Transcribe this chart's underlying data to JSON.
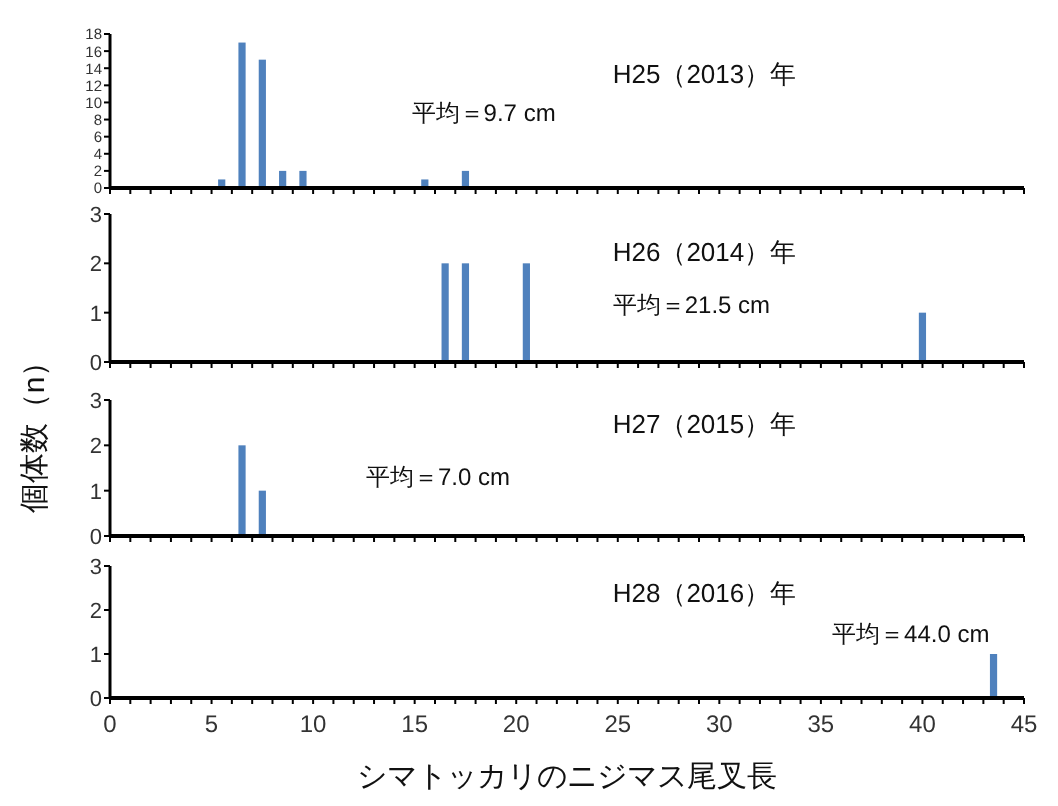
{
  "chart_data": [
    {
      "type": "bar",
      "title": "H25（2013）年",
      "annotations": [
        "平均＝9.7 cm"
      ],
      "xlim": [
        0,
        45
      ],
      "ylim": [
        0,
        18
      ],
      "yticks": [
        0,
        2,
        4,
        6,
        8,
        10,
        12,
        14,
        16,
        18
      ],
      "xticks": [
        {
          "value": 0,
          "label": null
        },
        {
          "value": 1,
          "label": null
        },
        {
          "value": 2,
          "label": null
        },
        {
          "value": 3,
          "label": null
        },
        {
          "value": 4,
          "label": null
        },
        {
          "value": 5,
          "label": null
        },
        {
          "value": 6,
          "label": null
        },
        {
          "value": 7,
          "label": null
        },
        {
          "value": 8,
          "label": null
        },
        {
          "value": 9,
          "label": null
        },
        {
          "value": 10,
          "label": null
        },
        {
          "value": 11,
          "label": null
        },
        {
          "value": 12,
          "label": null
        },
        {
          "value": 13,
          "label": null
        },
        {
          "value": 14,
          "label": null
        },
        {
          "value": 15,
          "label": null
        },
        {
          "value": 16,
          "label": null
        },
        {
          "value": 17,
          "label": null
        },
        {
          "value": 18,
          "label": null
        },
        {
          "value": 19,
          "label": null
        },
        {
          "value": 20,
          "label": null
        },
        {
          "value": 21,
          "label": null
        },
        {
          "value": 22,
          "label": null
        },
        {
          "value": 23,
          "label": null
        },
        {
          "value": 24,
          "label": null
        },
        {
          "value": 25,
          "label": null
        },
        {
          "value": 26,
          "label": null
        },
        {
          "value": 27,
          "label": null
        },
        {
          "value": 28,
          "label": null
        },
        {
          "value": 29,
          "label": null
        },
        {
          "value": 30,
          "label": null
        },
        {
          "value": 31,
          "label": null
        },
        {
          "value": 32,
          "label": null
        },
        {
          "value": 33,
          "label": null
        },
        {
          "value": 34,
          "label": null
        },
        {
          "value": 35,
          "label": null
        },
        {
          "value": 36,
          "label": null
        },
        {
          "value": 37,
          "label": null
        },
        {
          "value": 38,
          "label": null
        },
        {
          "value": 39,
          "label": null
        },
        {
          "value": 40,
          "label": null
        },
        {
          "value": 41,
          "label": null
        },
        {
          "value": 42,
          "label": null
        },
        {
          "value": 43,
          "label": null
        },
        {
          "value": 44,
          "label": null
        },
        {
          "value": 45,
          "label": null
        }
      ],
      "tick_labels": "y",
      "series": [
        {
          "color": "#4f81bd",
          "x": [
            5.5,
            6.5,
            7.5,
            8.5,
            9.5,
            15.5,
            17.5
          ],
          "values": [
            1,
            17,
            15,
            2,
            2,
            1,
            2
          ]
        }
      ]
    },
    {
      "type": "bar",
      "title": "H26（2014）年",
      "annotations": [
        "平均＝21.5 cm"
      ],
      "ylabel": "個体数（n）",
      "xlim": [
        0,
        45
      ],
      "ylim": [
        0,
        3
      ],
      "yticks": [
        0,
        1,
        2,
        3
      ],
      "xticks": [
        {
          "value": 0,
          "label": null
        },
        {
          "value": 1,
          "label": null
        },
        {
          "value": 2,
          "label": null
        },
        {
          "value": 3,
          "label": null
        },
        {
          "value": 4,
          "label": null
        },
        {
          "value": 5,
          "label": null
        },
        {
          "value": 6,
          "label": null
        },
        {
          "value": 7,
          "label": null
        },
        {
          "value": 8,
          "label": null
        },
        {
          "value": 9,
          "label": null
        },
        {
          "value": 10,
          "label": null
        },
        {
          "value": 11,
          "label": null
        },
        {
          "value": 12,
          "label": null
        },
        {
          "value": 13,
          "label": null
        },
        {
          "value": 14,
          "label": null
        },
        {
          "value": 15,
          "label": null
        },
        {
          "value": 16,
          "label": null
        },
        {
          "value": 17,
          "label": null
        },
        {
          "value": 18,
          "label": null
        },
        {
          "value": 19,
          "label": null
        },
        {
          "value": 20,
          "label": null
        },
        {
          "value": 21,
          "label": null
        },
        {
          "value": 22,
          "label": null
        },
        {
          "value": 23,
          "label": null
        },
        {
          "value": 24,
          "label": null
        },
        {
          "value": 25,
          "label": null
        },
        {
          "value": 26,
          "label": null
        },
        {
          "value": 27,
          "label": null
        },
        {
          "value": 28,
          "label": null
        },
        {
          "value": 29,
          "label": null
        },
        {
          "value": 30,
          "label": null
        },
        {
          "value": 31,
          "label": null
        },
        {
          "value": 32,
          "label": null
        },
        {
          "value": 33,
          "label": null
        },
        {
          "value": 34,
          "label": null
        },
        {
          "value": 35,
          "label": null
        },
        {
          "value": 36,
          "label": null
        },
        {
          "value": 37,
          "label": null
        },
        {
          "value": 38,
          "label": null
        },
        {
          "value": 39,
          "label": null
        },
        {
          "value": 40,
          "label": null
        },
        {
          "value": 41,
          "label": null
        },
        {
          "value": 42,
          "label": null
        },
        {
          "value": 43,
          "label": null
        },
        {
          "value": 44,
          "label": null
        },
        {
          "value": 45,
          "label": null
        }
      ],
      "tick_labels": "y",
      "series": [
        {
          "color": "#4f81bd",
          "x": [
            16.5,
            17.5,
            20.5,
            40
          ],
          "values": [
            2,
            2,
            2,
            1
          ]
        }
      ]
    },
    {
      "type": "bar",
      "title": "H27（2015）年",
      "annotations": [
        "平均＝7.0 cm"
      ],
      "xlim": [
        0,
        45
      ],
      "ylim": [
        0,
        3
      ],
      "yticks": [
        0,
        1,
        2,
        3
      ],
      "xticks": [
        {
          "value": 0,
          "label": null
        },
        {
          "value": 1,
          "label": null
        },
        {
          "value": 2,
          "label": null
        },
        {
          "value": 3,
          "label": null
        },
        {
          "value": 4,
          "label": null
        },
        {
          "value": 5,
          "label": null
        },
        {
          "value": 6,
          "label": null
        },
        {
          "value": 7,
          "label": null
        },
        {
          "value": 8,
          "label": null
        },
        {
          "value": 9,
          "label": null
        },
        {
          "value": 10,
          "label": null
        },
        {
          "value": 11,
          "label": null
        },
        {
          "value": 12,
          "label": null
        },
        {
          "value": 13,
          "label": null
        },
        {
          "value": 14,
          "label": null
        },
        {
          "value": 15,
          "label": null
        },
        {
          "value": 16,
          "label": null
        },
        {
          "value": 17,
          "label": null
        },
        {
          "value": 18,
          "label": null
        },
        {
          "value": 19,
          "label": null
        },
        {
          "value": 20,
          "label": null
        },
        {
          "value": 21,
          "label": null
        },
        {
          "value": 22,
          "label": null
        },
        {
          "value": 23,
          "label": null
        },
        {
          "value": 24,
          "label": null
        },
        {
          "value": 25,
          "label": null
        },
        {
          "value": 26,
          "label": null
        },
        {
          "value": 27,
          "label": null
        },
        {
          "value": 28,
          "label": null
        },
        {
          "value": 29,
          "label": null
        },
        {
          "value": 30,
          "label": null
        },
        {
          "value": 31,
          "label": null
        },
        {
          "value": 32,
          "label": null
        },
        {
          "value": 33,
          "label": null
        },
        {
          "value": 34,
          "label": null
        },
        {
          "value": 35,
          "label": null
        },
        {
          "value": 36,
          "label": null
        },
        {
          "value": 37,
          "label": null
        },
        {
          "value": 38,
          "label": null
        },
        {
          "value": 39,
          "label": null
        },
        {
          "value": 40,
          "label": null
        },
        {
          "value": 41,
          "label": null
        },
        {
          "value": 42,
          "label": null
        },
        {
          "value": 43,
          "label": null
        },
        {
          "value": 44,
          "label": null
        },
        {
          "value": 45,
          "label": null
        }
      ],
      "tick_labels": "y",
      "series": [
        {
          "color": "#4f81bd",
          "x": [
            6.5,
            7.5
          ],
          "values": [
            2,
            1
          ]
        }
      ]
    },
    {
      "type": "bar",
      "title": "H28（2016）年",
      "annotations": [
        "平均＝44.0 cm"
      ],
      "xlabel": "シマトッカリのニジマス尾叉長",
      "xlim": [
        0,
        45
      ],
      "ylim": [
        0,
        3
      ],
      "yticks": [
        0,
        1,
        2,
        3
      ],
      "xticks": [
        0,
        {
          "value": 1,
          "label": null
        },
        {
          "value": 2,
          "label": null
        },
        {
          "value": 3,
          "label": null
        },
        {
          "value": 4,
          "label": null
        },
        5,
        {
          "value": 6,
          "label": null
        },
        {
          "value": 7,
          "label": null
        },
        {
          "value": 8,
          "label": null
        },
        {
          "value": 9,
          "label": null
        },
        10,
        {
          "value": 11,
          "label": null
        },
        {
          "value": 12,
          "label": null
        },
        {
          "value": 13,
          "label": null
        },
        {
          "value": 14,
          "label": null
        },
        15,
        {
          "value": 16,
          "label": null
        },
        {
          "value": 17,
          "label": null
        },
        {
          "value": 18,
          "label": null
        },
        {
          "value": 19,
          "label": null
        },
        20,
        {
          "value": 21,
          "label": null
        },
        {
          "value": 22,
          "label": null
        },
        {
          "value": 23,
          "label": null
        },
        {
          "value": 24,
          "label": null
        },
        25,
        {
          "value": 26,
          "label": null
        },
        {
          "value": 27,
          "label": null
        },
        {
          "value": 28,
          "label": null
        },
        {
          "value": 29,
          "label": null
        },
        30,
        {
          "value": 31,
          "label": null
        },
        {
          "value": 32,
          "label": null
        },
        {
          "value": 33,
          "label": null
        },
        {
          "value": 34,
          "label": null
        },
        35,
        {
          "value": 36,
          "label": null
        },
        {
          "value": 37,
          "label": null
        },
        {
          "value": 38,
          "label": null
        },
        {
          "value": 39,
          "label": null
        },
        40,
        {
          "value": 41,
          "label": null
        },
        {
          "value": 42,
          "label": null
        },
        {
          "value": 43,
          "label": null
        },
        {
          "value": 44,
          "label": null
        },
        45
      ],
      "series": [
        {
          "color": "#4f81bd",
          "x": [
            43.5
          ],
          "values": [
            1
          ]
        }
      ]
    }
  ]
}
